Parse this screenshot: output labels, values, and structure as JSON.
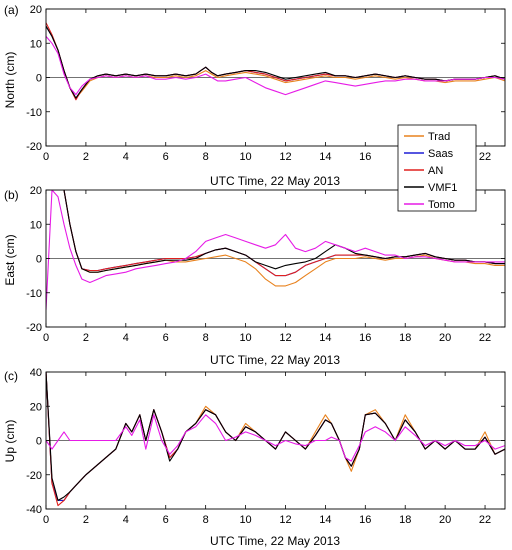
{
  "series_styles": [
    {
      "name": "Trad",
      "color": "#E8821E"
    },
    {
      "name": "Saas",
      "color": "#1F1FD6"
    },
    {
      "name": "AN",
      "color": "#E0201E"
    },
    {
      "name": "VMF1",
      "color": "#000000"
    },
    {
      "name": "Tomo",
      "color": "#E61BE6"
    }
  ],
  "chart_data": [
    {
      "type": "line",
      "panel_label": "(a)",
      "xlabel": "UTC Time, 22 May 2013",
      "ylabel": "North (cm)",
      "xlim": [
        0,
        23
      ],
      "ylim": [
        -20,
        20
      ],
      "xticks": [
        0,
        2,
        4,
        6,
        8,
        10,
        12,
        14,
        16,
        18,
        20,
        22
      ],
      "yticks": [
        -20,
        -10,
        0,
        10,
        20
      ],
      "legend": {
        "placement": "bottom-right",
        "entries": [
          "Trad",
          "Saas",
          "AN",
          "VMF1",
          "Tomo"
        ]
      },
      "x": [
        0,
        0.3,
        0.6,
        0.9,
        1.2,
        1.5,
        1.8,
        2.2,
        2.6,
        3,
        3.5,
        4,
        4.5,
        5,
        5.5,
        6,
        6.5,
        7,
        7.5,
        8,
        8.3,
        8.6,
        9,
        9.5,
        10,
        10.5,
        11,
        11.5,
        12,
        12.5,
        13,
        13.5,
        14,
        14.5,
        15,
        15.5,
        16,
        16.5,
        17,
        17.5,
        18,
        18.5,
        19,
        19.5,
        20,
        20.5,
        21,
        21.5,
        22,
        22.5,
        23
      ],
      "series": [
        {
          "name": "Trad",
          "values": [
            15,
            12,
            8,
            2,
            -3,
            -6,
            -4,
            -1,
            0,
            0.5,
            0,
            0.5,
            0,
            0.5,
            0,
            0,
            0.5,
            0,
            0.5,
            2,
            1,
            0,
            0.5,
            1,
            1.5,
            1,
            0.5,
            -0.5,
            -1.5,
            -1,
            -0.5,
            0,
            0.5,
            0,
            0,
            -0.5,
            0,
            0.5,
            0,
            -0.5,
            0,
            -0.5,
            -1,
            -1,
            -1.5,
            -1,
            -1,
            -1,
            -0.5,
            0,
            -1
          ]
        },
        {
          "name": "Saas",
          "values": [
            15,
            12,
            8,
            2,
            -3,
            -6,
            -3.5,
            -0.5,
            0.5,
            1,
            0.5,
            1,
            0.5,
            1,
            0.5,
            0.5,
            1,
            0.5,
            1,
            3,
            1.5,
            0.5,
            1,
            1.5,
            2,
            1.5,
            1,
            0,
            -1,
            -0.5,
            0,
            0.5,
            1,
            0.5,
            0.5,
            0,
            0.5,
            1,
            0.5,
            0,
            0.5,
            0,
            -0.5,
            -0.5,
            -1,
            -0.5,
            -0.5,
            -0.5,
            0,
            0.5,
            -0.5
          ]
        },
        {
          "name": "AN",
          "values": [
            16,
            12.5,
            8,
            2,
            -3,
            -6.5,
            -3.5,
            -0.5,
            0.5,
            1,
            0.5,
            1,
            0.5,
            1,
            0.5,
            0.5,
            1,
            0.5,
            1,
            3,
            1.5,
            0.5,
            1,
            1.5,
            2,
            1.5,
            1,
            0,
            -1,
            -0.5,
            0,
            0.5,
            1,
            0.5,
            0.5,
            0,
            0.5,
            1,
            0.5,
            0,
            0.5,
            0,
            -0.5,
            -0.5,
            -1,
            -0.5,
            -0.5,
            -0.5,
            0,
            0.5,
            -0.5
          ]
        },
        {
          "name": "VMF1",
          "values": [
            15,
            12,
            8,
            2,
            -3,
            -6,
            -3.5,
            -0.5,
            0.5,
            1,
            0.5,
            1,
            0.5,
            1,
            0.5,
            0.5,
            1,
            0.5,
            1,
            3,
            1.5,
            0.5,
            1,
            1.5,
            2,
            2,
            1.5,
            0.5,
            -0.5,
            0,
            0.5,
            1,
            1.5,
            0.5,
            0.5,
            0,
            0.5,
            1,
            0.5,
            0,
            0.5,
            0,
            -0.5,
            -0.5,
            -1,
            -0.5,
            -0.5,
            -0.5,
            0,
            0.5,
            -0.5
          ]
        },
        {
          "name": "Tomo",
          "values": [
            12,
            10,
            7,
            1,
            -3,
            -5,
            -2.5,
            -0.5,
            0,
            0.5,
            0,
            0.5,
            0,
            0.5,
            -0.5,
            -0.5,
            0,
            -0.5,
            0,
            1,
            0,
            -1,
            -1,
            -0.5,
            0,
            -1.5,
            -3,
            -4,
            -5,
            -4,
            -3,
            -2,
            -1,
            -1.5,
            -2,
            -2.5,
            -2,
            -1.5,
            -1,
            -1,
            -0.5,
            -0.5,
            -1,
            -1,
            -1,
            -0.5,
            -0.5,
            -0.5,
            0,
            0,
            -0.5
          ]
        }
      ]
    },
    {
      "type": "line",
      "panel_label": "(b)",
      "xlabel": "UTC Time, 22 May 2013",
      "ylabel": "East (cm)",
      "xlim": [
        0,
        23
      ],
      "ylim": [
        -20,
        20
      ],
      "xticks": [
        0,
        2,
        4,
        6,
        8,
        10,
        12,
        14,
        16,
        18,
        20,
        22
      ],
      "yticks": [
        -20,
        -10,
        0,
        10,
        20
      ],
      "x": [
        0,
        0.3,
        0.6,
        0.9,
        1.2,
        1.5,
        1.8,
        2.2,
        2.6,
        3,
        3.5,
        4,
        4.5,
        5,
        5.5,
        6,
        6.5,
        7,
        7.5,
        8,
        8.5,
        9,
        9.5,
        10,
        10.5,
        11,
        11.5,
        12,
        12.5,
        13,
        13.5,
        14,
        14.5,
        15,
        15.5,
        16,
        16.5,
        17,
        17.5,
        18,
        18.5,
        19,
        19.5,
        20,
        20.5,
        21,
        21.5,
        22,
        22.5,
        23
      ],
      "series": [
        {
          "name": "Trad",
          "values": [
            20,
            20,
            20,
            20,
            10,
            2,
            -3,
            -4,
            -4,
            -3.5,
            -3,
            -2.5,
            -2,
            -1.5,
            -1,
            -0.5,
            -1,
            -1,
            -0.5,
            0,
            0.5,
            1,
            0,
            -1,
            -3,
            -6,
            -8,
            -8,
            -7,
            -5,
            -3,
            -1,
            0,
            0,
            0,
            0.5,
            0,
            -0.5,
            0,
            0,
            0.5,
            1,
            0,
            -0.5,
            -1,
            -1,
            -1.5,
            -1.5,
            -2,
            -2
          ]
        },
        {
          "name": "Saas",
          "values": [
            20,
            20,
            20,
            20,
            10,
            2,
            -3,
            -3.5,
            -3.5,
            -3,
            -2.5,
            -2,
            -1.5,
            -1,
            -0.5,
            0,
            0,
            0,
            0.5,
            1.5,
            2.5,
            3,
            2,
            1,
            -1,
            -3,
            -5,
            -5,
            -4,
            -2,
            -1,
            0,
            1,
            1,
            1,
            1,
            0.5,
            0,
            0.5,
            0.5,
            1,
            1.5,
            0.5,
            0,
            -0.5,
            -0.5,
            -1,
            -1,
            -1.5,
            -1.5
          ]
        },
        {
          "name": "AN",
          "values": [
            20,
            20,
            20,
            20,
            10,
            2,
            -3,
            -3.5,
            -3.5,
            -3,
            -2.5,
            -2,
            -1.5,
            -1,
            -0.5,
            0,
            0,
            0,
            0.5,
            1.5,
            2.5,
            3,
            2,
            1,
            -1,
            -3,
            -5,
            -5,
            -4,
            -2,
            -1,
            0,
            1,
            1,
            1,
            1,
            0.5,
            0,
            0.5,
            0.5,
            1,
            1.5,
            0.5,
            0,
            -0.5,
            -0.5,
            -1,
            -1,
            -1.5,
            -1.5
          ]
        },
        {
          "name": "VMF1",
          "values": [
            20,
            20,
            20,
            20,
            10,
            2,
            -3,
            -4,
            -4,
            -3.5,
            -3,
            -2.5,
            -2,
            -1.5,
            -1,
            -0.5,
            -0.5,
            -0.5,
            0,
            1.5,
            2.5,
            3,
            2,
            1,
            -1,
            -2,
            -3,
            -2,
            -1.5,
            -1,
            0,
            2,
            4,
            3,
            1.5,
            1,
            0.5,
            0,
            0.5,
            0.5,
            1,
            1.5,
            0.5,
            0,
            -0.5,
            -0.5,
            -1,
            -1,
            -1.5,
            -1.5
          ]
        },
        {
          "name": "Tomo",
          "values": [
            -15,
            20,
            18,
            10,
            3,
            -2,
            -6,
            -7,
            -6,
            -5,
            -4.5,
            -4,
            -3,
            -2.5,
            -2,
            -1.5,
            -1,
            0,
            2,
            5,
            6,
            7,
            6,
            5,
            4,
            3,
            4,
            7,
            3,
            2,
            3,
            5,
            4,
            3,
            2,
            3,
            2,
            1,
            1,
            0,
            0.5,
            0.5,
            0,
            -0.5,
            -1,
            -1,
            -1,
            -1,
            -1,
            -1
          ]
        }
      ]
    },
    {
      "type": "line",
      "panel_label": "(c)",
      "xlabel": "UTC Time, 22 May 2013",
      "ylabel": "Up (cm)",
      "xlim": [
        0,
        23
      ],
      "ylim": [
        -40,
        40
      ],
      "xticks": [
        0,
        2,
        4,
        6,
        8,
        10,
        12,
        14,
        16,
        18,
        20,
        22
      ],
      "yticks": [
        -40,
        -20,
        0,
        20,
        40
      ],
      "x": [
        0,
        0.3,
        0.6,
        0.9,
        1.2,
        1.6,
        2,
        2.5,
        3,
        3.5,
        4,
        4.3,
        4.7,
        5,
        5.4,
        5.8,
        6.2,
        6.6,
        7,
        7.5,
        8,
        8.5,
        9,
        9.5,
        10,
        10.5,
        11,
        11.5,
        12,
        12.5,
        13,
        13.5,
        14,
        14.3,
        14.7,
        15,
        15.3,
        15.7,
        16,
        16.5,
        17,
        17.5,
        18,
        18.5,
        19,
        19.5,
        20,
        20.5,
        21,
        21.5,
        22,
        22.5,
        23
      ],
      "series": [
        {
          "name": "Trad",
          "values": [
            40,
            -25,
            -35,
            -35,
            -30,
            -25,
            -20,
            -15,
            -10,
            -5,
            10,
            5,
            15,
            0,
            18,
            5,
            -10,
            -5,
            5,
            10,
            20,
            15,
            5,
            0,
            10,
            5,
            0,
            -5,
            5,
            0,
            -5,
            5,
            15,
            10,
            0,
            -10,
            -18,
            -5,
            15,
            18,
            10,
            0,
            15,
            5,
            -5,
            0,
            -5,
            0,
            -5,
            -5,
            5,
            -8,
            -5
          ]
        },
        {
          "name": "Saas",
          "values": [
            40,
            -25,
            -35,
            -35,
            -30,
            -25,
            -20,
            -15,
            -10,
            -5,
            10,
            5,
            15,
            0,
            18,
            5,
            -10,
            -5,
            5,
            10,
            18,
            15,
            5,
            0,
            8,
            5,
            0,
            -5,
            5,
            0,
            -5,
            3,
            12,
            10,
            0,
            -10,
            -15,
            -5,
            15,
            16,
            10,
            0,
            12,
            5,
            -5,
            0,
            -5,
            0,
            -5,
            -5,
            2,
            -8,
            -5
          ]
        },
        {
          "name": "AN",
          "values": [
            40,
            -25,
            -38,
            -35,
            -30,
            -25,
            -20,
            -15,
            -10,
            -5,
            10,
            5,
            15,
            0,
            18,
            5,
            -10,
            -5,
            5,
            10,
            18,
            15,
            5,
            0,
            8,
            5,
            0,
            -5,
            5,
            0,
            -5,
            3,
            12,
            10,
            0,
            -10,
            -15,
            -5,
            15,
            16,
            10,
            0,
            12,
            5,
            -5,
            0,
            -5,
            0,
            -5,
            -5,
            2,
            -8,
            -5
          ]
        },
        {
          "name": "VMF1",
          "values": [
            40,
            -22,
            -35,
            -33,
            -30,
            -25,
            -20,
            -15,
            -10,
            -5,
            10,
            5,
            15,
            0,
            18,
            5,
            -12,
            -5,
            5,
            10,
            18,
            15,
            5,
            0,
            8,
            5,
            0,
            -5,
            5,
            0,
            -5,
            3,
            12,
            10,
            0,
            -10,
            -15,
            -5,
            15,
            16,
            10,
            0,
            12,
            5,
            -5,
            0,
            -5,
            0,
            -5,
            -5,
            2,
            -8,
            -5
          ]
        },
        {
          "name": "Tomo",
          "values": [
            0,
            -5,
            0,
            5,
            0,
            0,
            0,
            0,
            0,
            0,
            8,
            3,
            12,
            -5,
            15,
            0,
            -8,
            -3,
            5,
            8,
            15,
            10,
            0,
            2,
            5,
            3,
            0,
            -3,
            0,
            -2,
            -3,
            0,
            0,
            2,
            0,
            -10,
            -12,
            -3,
            5,
            8,
            5,
            0,
            8,
            3,
            -3,
            0,
            -3,
            0,
            -3,
            -3,
            0,
            -5,
            -3
          ]
        }
      ]
    }
  ]
}
